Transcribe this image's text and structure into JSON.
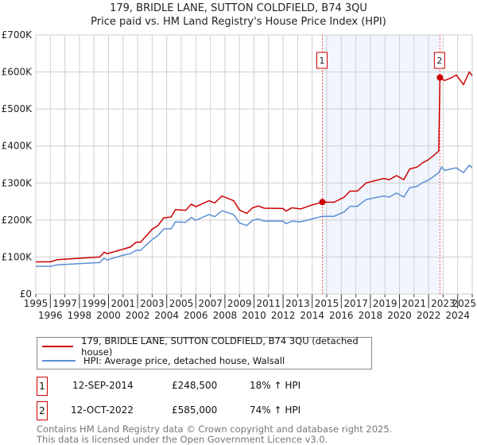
{
  "chart_data": {
    "type": "line",
    "title": "179, BRIDLE LANE, SUTTON COLDFIELD, B74 3QU",
    "subtitle": "Price paid vs. HM Land Registry's House Price Index (HPI)",
    "xlabel": "",
    "ylabel": "",
    "xlim": [
      1995,
      2025
    ],
    "ylim": [
      0,
      700000
    ],
    "grid": true,
    "x_ticks": [
      "1995",
      "1996",
      "1997",
      "1998",
      "1999",
      "2000",
      "2001",
      "2002",
      "2003",
      "2004",
      "2005",
      "2006",
      "2007",
      "2008",
      "2009",
      "2010",
      "2011",
      "2012",
      "2013",
      "2014",
      "2015",
      "2016",
      "2017",
      "2018",
      "2019",
      "2020",
      "2021",
      "2022",
      "2023",
      "2024",
      "2025"
    ],
    "y_ticks": [
      {
        "v": 0,
        "label": "£0"
      },
      {
        "v": 100000,
        "label": "£100K"
      },
      {
        "v": 200000,
        "label": "£200K"
      },
      {
        "v": 300000,
        "label": "£300K"
      },
      {
        "v": 400000,
        "label": "£400K"
      },
      {
        "v": 500000,
        "label": "£500K"
      },
      {
        "v": 600000,
        "label": "£600K"
      },
      {
        "v": 700000,
        "label": "£700K"
      }
    ],
    "legend_position": "below",
    "series": [
      {
        "name": "179, BRIDLE LANE, SUTTON COLDFIELD, B74 3QU (detached house)",
        "color": "#cc0000",
        "x": [
          1995,
          1996,
          1996.5,
          1999.4,
          1999.7,
          1999.9,
          2000.9,
          2001.5,
          2001.9,
          2002.2,
          2003,
          2003.4,
          2003.8,
          2004.3,
          2004.6,
          2005.3,
          2005.7,
          2006,
          2006.9,
          2007.3,
          2007.8,
          2008.6,
          2009,
          2009.5,
          2009.9,
          2010.3,
          2010.7,
          2012,
          2012.2,
          2012.6,
          2013.2,
          2014.1,
          2014.7,
          2015.5,
          2016.2,
          2016.6,
          2017.1,
          2017.7,
          2018.9,
          2019.3,
          2019.8,
          2020.3,
          2020.7,
          2021.2,
          2021.6,
          2022.0,
          2022.7,
          2022.78,
          2023.1,
          2023.5,
          2023.9,
          2024.4,
          2024.8,
          2025
        ],
        "y": [
          87000,
          87000,
          93000,
          100000,
          113000,
          109000,
          120000,
          127000,
          140000,
          140000,
          175000,
          185000,
          206000,
          208000,
          228000,
          226000,
          243000,
          236000,
          252000,
          246000,
          265000,
          252000,
          227000,
          218000,
          233000,
          238000,
          232000,
          231000,
          224000,
          233000,
          230000,
          242000,
          248500,
          248000,
          262000,
          278000,
          278000,
          300000,
          312000,
          309000,
          320000,
          309000,
          338000,
          343000,
          355000,
          363000,
          386000,
          585000,
          577000,
          583000,
          592000,
          566000,
          600000,
          590000
        ]
      },
      {
        "name": "HPI: Average price, detached house, Walsall",
        "color": "#5b8fd4",
        "x": [
          1995,
          1996,
          1996.5,
          1999.4,
          1999.7,
          1999.9,
          2000.9,
          2001.5,
          2001.9,
          2002.2,
          2003,
          2003.4,
          2003.8,
          2004.3,
          2004.6,
          2005.3,
          2005.7,
          2006,
          2006.9,
          2007.3,
          2007.8,
          2008.6,
          2009,
          2009.5,
          2009.9,
          2010.3,
          2010.7,
          2012,
          2012.2,
          2012.6,
          2013.2,
          2014.1,
          2014.7,
          2015.5,
          2016.2,
          2016.6,
          2017.1,
          2017.7,
          2018.9,
          2019.3,
          2019.8,
          2020.3,
          2020.7,
          2021.2,
          2021.6,
          2022.0,
          2022.7,
          2022.9,
          2023.1,
          2023.9,
          2024.4,
          2024.8,
          2025
        ],
        "y": [
          75000,
          75000,
          79000,
          85000,
          97000,
          92000,
          104000,
          109000,
          118000,
          118000,
          147000,
          158000,
          176000,
          176000,
          195000,
          194000,
          207000,
          199000,
          215000,
          209000,
          225000,
          215000,
          192000,
          185000,
          199000,
          203000,
          197000,
          197000,
          190000,
          197000,
          195000,
          204000,
          210000,
          210000,
          222000,
          237000,
          237000,
          255000,
          265000,
          262000,
          273000,
          262000,
          287000,
          291000,
          301000,
          308000,
          328000,
          343000,
          334000,
          341000,
          328000,
          348000,
          341000
        ]
      }
    ],
    "sales": [
      {
        "label": "1",
        "x": 2014.7,
        "y": 248500,
        "date": "12-SEP-2014",
        "price": "£248,500",
        "hpi": "18% ↑ HPI"
      },
      {
        "label": "2",
        "x": 2022.78,
        "y": 585000,
        "date": "12-OCT-2022",
        "price": "£585,000",
        "hpi": "74% ↑ HPI"
      }
    ],
    "shaded_range": [
      2014.7,
      2022.78
    ]
  },
  "footer": {
    "line1": "Contains HM Land Registry data © Crown copyright and database right 2025.",
    "line2": "This data is licensed under the Open Government Licence v3.0."
  }
}
